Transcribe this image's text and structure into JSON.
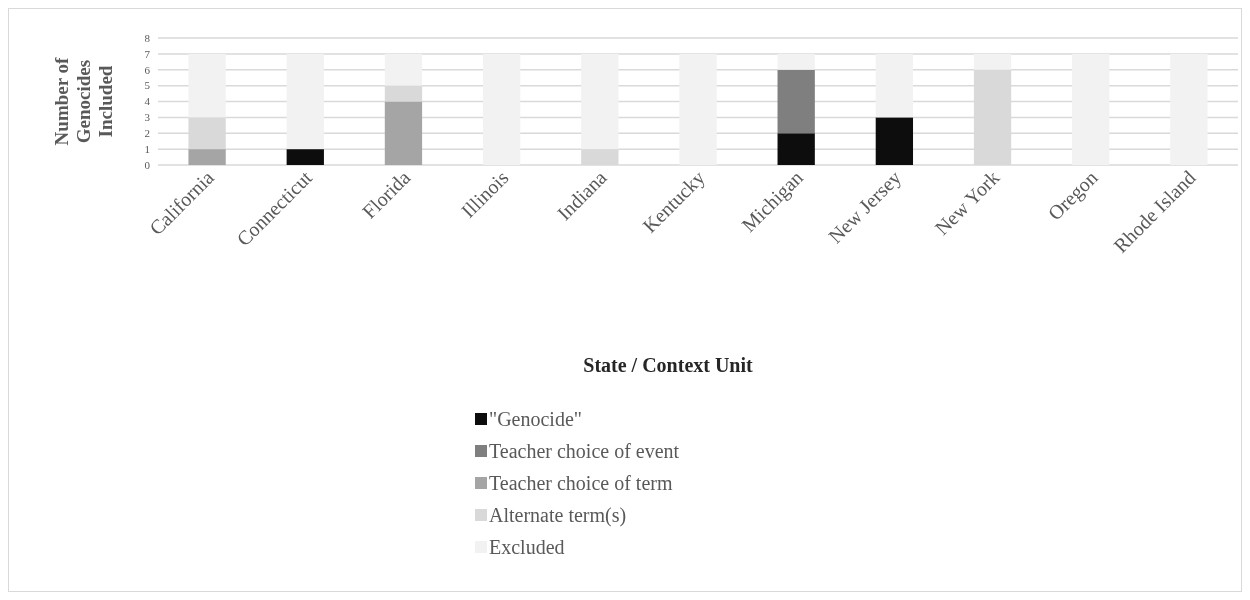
{
  "chart_data": {
    "type": "bar",
    "stacked": true,
    "xlabel": "State / Context Unit",
    "ylabel": "Number of Genocides Included",
    "categories": [
      "California",
      "Connecticut",
      "Florida",
      "Illinois",
      "Indiana",
      "Kentucky",
      "Michigan",
      "New Jersey",
      "New York",
      "Oregon",
      "Rhode Island"
    ],
    "series": [
      {
        "name": "\"Genocide\"",
        "color": "#0d0d0d",
        "values": [
          0,
          1,
          0,
          0,
          0,
          0,
          2,
          3,
          0,
          0,
          0
        ]
      },
      {
        "name": "Teacher choice of event",
        "color": "#7f7f7f",
        "values": [
          0,
          0,
          0,
          0,
          0,
          0,
          4,
          0,
          0,
          0,
          0
        ]
      },
      {
        "name": "Teacher choice of term",
        "color": "#a5a5a5",
        "values": [
          1,
          0,
          4,
          0,
          0,
          0,
          0,
          0,
          0,
          0,
          0
        ]
      },
      {
        "name": "Alternate term(s)",
        "color": "#d9d9d9",
        "values": [
          2,
          0,
          1,
          0,
          1,
          0,
          0,
          0,
          6,
          0,
          0
        ]
      },
      {
        "name": "Excluded",
        "color": "#f2f2f2",
        "values": [
          4,
          6,
          2,
          7,
          6,
          7,
          1,
          4,
          1,
          7,
          7
        ]
      }
    ],
    "ylim": [
      0,
      8
    ],
    "yticks": [
      0,
      1,
      2,
      3,
      4,
      5,
      6,
      7,
      8
    ],
    "grid": "y",
    "legend": "bottom"
  }
}
